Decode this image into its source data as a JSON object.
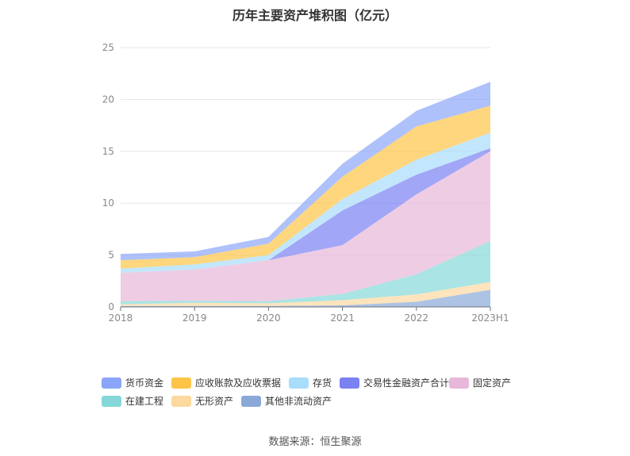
{
  "chart_data": {
    "type": "area",
    "stacked": true,
    "title": "历年主要资产堆积图（亿元）",
    "x": [
      "2018",
      "2019",
      "2020",
      "2021",
      "2022",
      "2023H1"
    ],
    "ylim": [
      0,
      25
    ],
    "yticks": [
      "0",
      "5",
      "10",
      "15",
      "20",
      "25"
    ],
    "grid": true,
    "legend_position": "bottom",
    "series": [
      {
        "name": "其他非流动资产",
        "color": "#8aa9d9",
        "values": [
          0.1,
          0.1,
          0.1,
          0.15,
          0.5,
          1.65
        ]
      },
      {
        "name": "无形资产",
        "color": "#fdd9a0",
        "values": [
          0.15,
          0.3,
          0.25,
          0.5,
          0.7,
          0.75
        ]
      },
      {
        "name": "在建工程",
        "color": "#86d8d8",
        "values": [
          0.3,
          0.2,
          0.2,
          0.6,
          1.95,
          3.95
        ]
      },
      {
        "name": "固定资产",
        "color": "#e7b8d9",
        "values": [
          2.75,
          3.0,
          3.95,
          4.7,
          7.7,
          8.65
        ]
      },
      {
        "name": "交易性金融资产合计",
        "color": "#7b80f2",
        "values": [
          0,
          0,
          0,
          3.35,
          1.9,
          0.3
        ]
      },
      {
        "name": "存货",
        "color": "#a8ddfb",
        "values": [
          0.4,
          0.5,
          0.5,
          1.1,
          1.45,
          1.5
        ]
      },
      {
        "name": "应收账款及应收票据",
        "color": "#fdc447",
        "values": [
          0.8,
          0.7,
          1.1,
          2.15,
          3.2,
          2.6
        ]
      },
      {
        "name": "货币资金",
        "color": "#8ba6f8",
        "values": [
          0.6,
          0.55,
          0.65,
          1.25,
          1.5,
          2.3
        ]
      }
    ],
    "legend_order": [
      "货币资金",
      "应收账款及应收票据",
      "存货",
      "交易性金融资产合计",
      "固定资产",
      "在建工程",
      "无形资产",
      "其他非流动资产"
    ]
  },
  "source": "数据来源：恒生聚源"
}
